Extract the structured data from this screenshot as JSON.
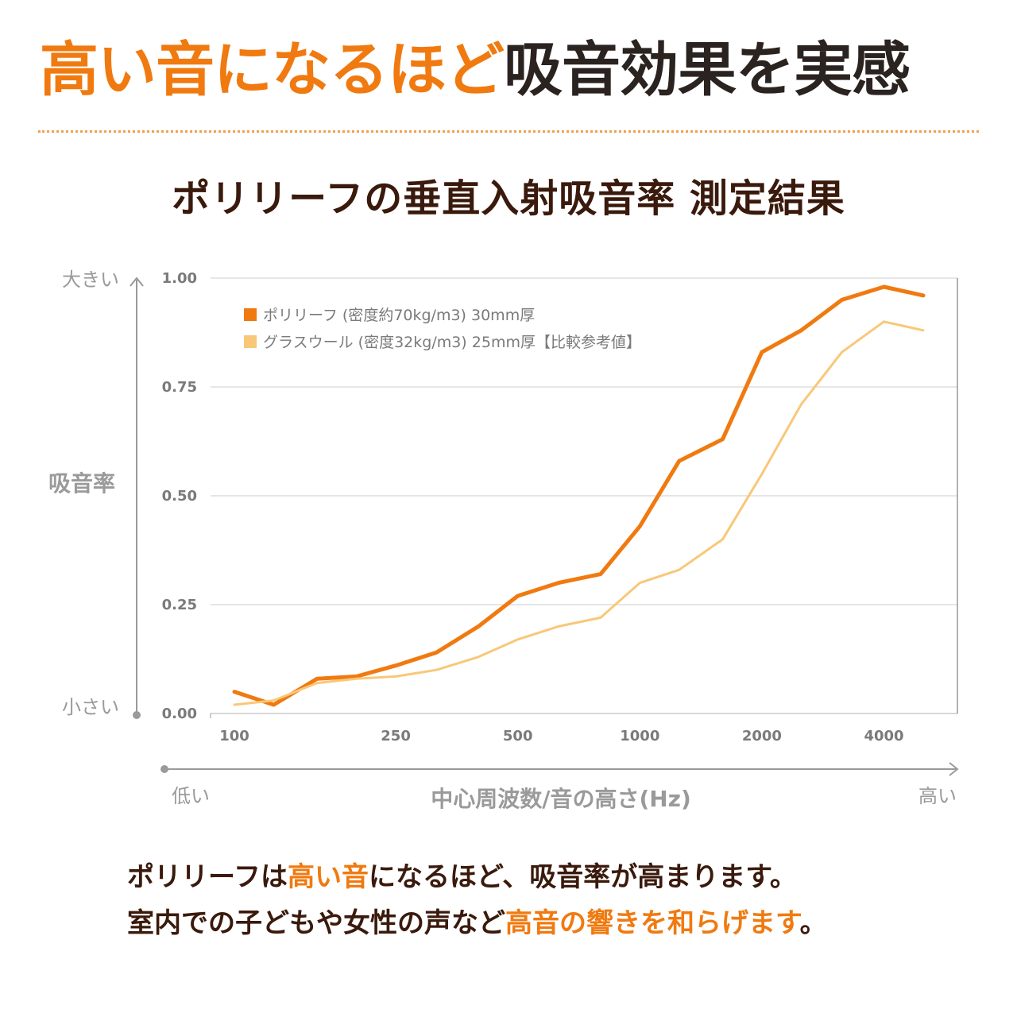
{
  "headline": {
    "orange": "高い音になるほど",
    "dark": "吸音効果を実感"
  },
  "colors": {
    "accent": "#f07a10",
    "series1": "#f07a10",
    "series2": "#f8c878",
    "text_dark": "#3a1a0c",
    "grid": "#cccccc"
  },
  "chart_data": {
    "type": "line",
    "title": "ポリリーフの垂直入射吸音率 測定結果",
    "ylabel": "吸音率",
    "xlabel": "中心周波数/音の高さ(Hz)",
    "y_high_label": "大きい",
    "y_low_label": "小さい",
    "x_low_label": "低い",
    "x_high_label": "高い",
    "ylim": [
      0,
      1
    ],
    "yticks": [
      "0.00",
      "0.25",
      "0.50",
      "0.75",
      "1.00"
    ],
    "xticks": [
      "100",
      "250",
      "500",
      "1000",
      "2000",
      "4000"
    ],
    "x_scale": "log",
    "grid": true,
    "legend_position": "top-left",
    "series": [
      {
        "name": "ポリリーフ (密度約70kg/m3) 30mm厚",
        "x": [
          100,
          125,
          160,
          200,
          250,
          315,
          400,
          500,
          630,
          800,
          1000,
          1250,
          1600,
          2000,
          2500,
          3150,
          4000,
          5000
        ],
        "y": [
          0.05,
          0.02,
          0.08,
          0.085,
          0.11,
          0.14,
          0.2,
          0.27,
          0.3,
          0.32,
          0.43,
          0.58,
          0.63,
          0.83,
          0.88,
          0.95,
          0.98,
          0.96
        ]
      },
      {
        "name": "グラスウール (密度32kg/m3) 25mm厚【比較参考値】",
        "x": [
          100,
          125,
          160,
          200,
          250,
          315,
          400,
          500,
          630,
          800,
          1000,
          1250,
          1600,
          2000,
          2500,
          3150,
          4000,
          5000
        ],
        "y": [
          0.02,
          0.03,
          0.07,
          0.08,
          0.085,
          0.1,
          0.13,
          0.17,
          0.2,
          0.22,
          0.3,
          0.33,
          0.4,
          0.55,
          0.71,
          0.83,
          0.9,
          0.88
        ]
      }
    ]
  },
  "caption": {
    "line1": {
      "a": "ポリリーフは",
      "b": "高い音",
      "c": "になるほど、吸音率が高まります。"
    },
    "line2": {
      "a": "室内での子どもや女性の声など",
      "b": "高音の響きを和らげます",
      "c": "。"
    }
  }
}
